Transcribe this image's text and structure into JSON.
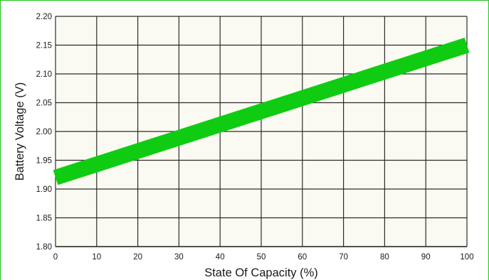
{
  "chart_data": {
    "type": "line",
    "title": "",
    "xlabel": "State Of Capacity (%)",
    "ylabel": "Battery Voltage (V)",
    "xlim": [
      0,
      100
    ],
    "ylim": [
      1.8,
      2.2
    ],
    "x_ticks": [
      "0",
      "10",
      "20",
      "30",
      "40",
      "50",
      "60",
      "70",
      "80",
      "90",
      "100"
    ],
    "y_ticks": [
      "1.80",
      "1.85",
      "1.90",
      "1.95",
      "2.00",
      "2.05",
      "2.10",
      "2.15",
      "2.20"
    ],
    "grid": true,
    "legend": "none",
    "series": [
      {
        "x": [
          0,
          100
        ],
        "y": [
          1.92,
          2.15
        ],
        "color": "#0fcc12"
      }
    ],
    "colors": {
      "plot_background": "#fbfaf2",
      "grid": "#2b2b2b",
      "frame": "#22c51f"
    }
  }
}
